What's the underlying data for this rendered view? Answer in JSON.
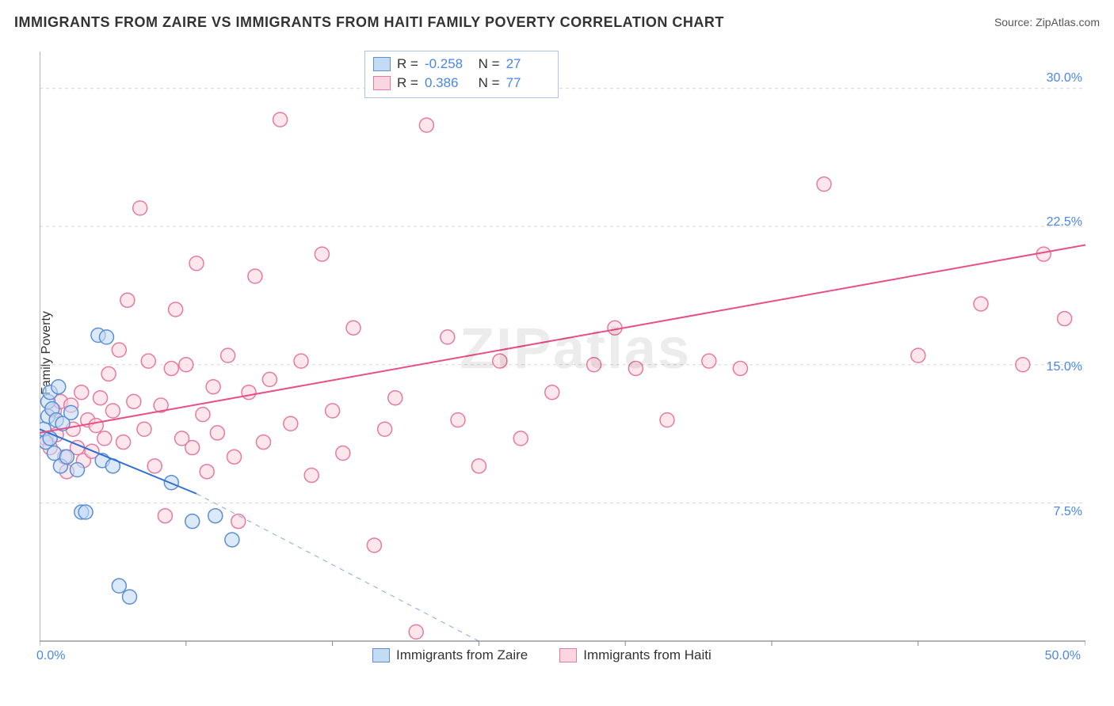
{
  "title": "IMMIGRANTS FROM ZAIRE VS IMMIGRANTS FROM HAITI FAMILY POVERTY CORRELATION CHART",
  "source": "Source: ZipAtlas.com",
  "ylabel": "Family Poverty",
  "watermark": "ZIPatlas",
  "chart": {
    "type": "scatter",
    "background_color": "#ffffff",
    "grid_color": "#d8d8d8",
    "axis_color": "#888888",
    "tick_label_color": "#4a86e8",
    "xlim": [
      0,
      50
    ],
    "ylim": [
      0,
      32
    ],
    "x_ticks": [
      0,
      7,
      14,
      21,
      28,
      35,
      42,
      50
    ],
    "x_tick_labels": {
      "0": "0.0%",
      "50": "50.0%"
    },
    "y_gridlines": [
      7.5,
      15.0,
      22.5,
      30.0
    ],
    "y_tick_labels": [
      "7.5%",
      "15.0%",
      "22.5%",
      "30.0%"
    ],
    "marker_radius": 9,
    "marker_stroke_width": 1.5,
    "line_width": 2,
    "series": [
      {
        "name": "Immigrants from Zaire",
        "fill_color": "#c4dbf5",
        "stroke_color": "#5b8fd6",
        "line_color": "#2f6fcf",
        "R": "-0.258",
        "N": "27",
        "regression": {
          "x1": 0,
          "y1": 11.5,
          "x2_solid": 7.5,
          "y2_solid": 8.0,
          "x2_dash": 21,
          "y2_dash": 0
        },
        "points": [
          [
            0.2,
            11.5
          ],
          [
            0.3,
            10.8
          ],
          [
            0.4,
            13.0
          ],
          [
            0.4,
            12.2
          ],
          [
            0.5,
            11.0
          ],
          [
            0.5,
            13.5
          ],
          [
            0.6,
            12.6
          ],
          [
            0.7,
            10.2
          ],
          [
            0.8,
            12.0
          ],
          [
            0.9,
            13.8
          ],
          [
            1.0,
            9.5
          ],
          [
            1.1,
            11.8
          ],
          [
            1.3,
            10.0
          ],
          [
            1.5,
            12.4
          ],
          [
            1.8,
            9.3
          ],
          [
            2.0,
            7.0
          ],
          [
            2.2,
            7.0
          ],
          [
            2.8,
            16.6
          ],
          [
            3.0,
            9.8
          ],
          [
            3.2,
            16.5
          ],
          [
            3.5,
            9.5
          ],
          [
            3.8,
            3.0
          ],
          [
            4.3,
            2.4
          ],
          [
            6.3,
            8.6
          ],
          [
            7.3,
            6.5
          ],
          [
            8.4,
            6.8
          ],
          [
            9.2,
            5.5
          ]
        ]
      },
      {
        "name": "Immigrants from Haiti",
        "fill_color": "#fbd5e0",
        "stroke_color": "#e77aa0",
        "line_color": "#e94f87",
        "R": "0.386",
        "N": "77",
        "regression": {
          "x1": 0,
          "y1": 11.3,
          "x2_solid": 50,
          "y2_solid": 21.5
        },
        "points": [
          [
            0.3,
            11.0
          ],
          [
            0.5,
            10.5
          ],
          [
            0.7,
            12.5
          ],
          [
            0.8,
            11.2
          ],
          [
            1.0,
            13.0
          ],
          [
            1.2,
            10.0
          ],
          [
            1.3,
            9.2
          ],
          [
            1.5,
            12.8
          ],
          [
            1.6,
            11.5
          ],
          [
            1.8,
            10.5
          ],
          [
            2.0,
            13.5
          ],
          [
            2.1,
            9.8
          ],
          [
            2.3,
            12.0
          ],
          [
            2.5,
            10.3
          ],
          [
            2.7,
            11.7
          ],
          [
            2.9,
            13.2
          ],
          [
            3.1,
            11.0
          ],
          [
            3.3,
            14.5
          ],
          [
            3.5,
            12.5
          ],
          [
            3.8,
            15.8
          ],
          [
            4.0,
            10.8
          ],
          [
            4.2,
            18.5
          ],
          [
            4.5,
            13.0
          ],
          [
            4.8,
            23.5
          ],
          [
            5.0,
            11.5
          ],
          [
            5.2,
            15.2
          ],
          [
            5.5,
            9.5
          ],
          [
            5.8,
            12.8
          ],
          [
            6.0,
            6.8
          ],
          [
            6.3,
            14.8
          ],
          [
            6.5,
            18.0
          ],
          [
            6.8,
            11.0
          ],
          [
            7.0,
            15.0
          ],
          [
            7.3,
            10.5
          ],
          [
            7.5,
            20.5
          ],
          [
            7.8,
            12.3
          ],
          [
            8.0,
            9.2
          ],
          [
            8.3,
            13.8
          ],
          [
            8.5,
            11.3
          ],
          [
            9.0,
            15.5
          ],
          [
            9.3,
            10.0
          ],
          [
            9.5,
            6.5
          ],
          [
            10.0,
            13.5
          ],
          [
            10.3,
            19.8
          ],
          [
            10.7,
            10.8
          ],
          [
            11.0,
            14.2
          ],
          [
            11.5,
            28.3
          ],
          [
            12.0,
            11.8
          ],
          [
            12.5,
            15.2
          ],
          [
            13.0,
            9.0
          ],
          [
            13.5,
            21.0
          ],
          [
            14.0,
            12.5
          ],
          [
            14.5,
            10.2
          ],
          [
            15.0,
            17.0
          ],
          [
            16.0,
            5.2
          ],
          [
            16.5,
            11.5
          ],
          [
            17.0,
            13.2
          ],
          [
            18.0,
            0.5
          ],
          [
            18.5,
            28.0
          ],
          [
            19.5,
            16.5
          ],
          [
            20.0,
            12.0
          ],
          [
            21.0,
            9.5
          ],
          [
            22.0,
            15.2
          ],
          [
            23.0,
            11.0
          ],
          [
            24.5,
            13.5
          ],
          [
            26.5,
            15.0
          ],
          [
            27.5,
            17.0
          ],
          [
            28.5,
            14.8
          ],
          [
            30.0,
            12.0
          ],
          [
            32.0,
            15.2
          ],
          [
            33.5,
            14.8
          ],
          [
            37.5,
            24.8
          ],
          [
            42.0,
            15.5
          ],
          [
            45.0,
            18.3
          ],
          [
            47.0,
            15.0
          ],
          [
            48.0,
            21.0
          ],
          [
            49.0,
            17.5
          ]
        ]
      }
    ]
  },
  "legend": {
    "items": [
      {
        "label": "Immigrants from Zaire",
        "fill": "#c4dbf5",
        "stroke": "#5b8fd6"
      },
      {
        "label": "Immigrants from Haiti",
        "fill": "#fbd5e0",
        "stroke": "#e77aa0"
      }
    ]
  }
}
